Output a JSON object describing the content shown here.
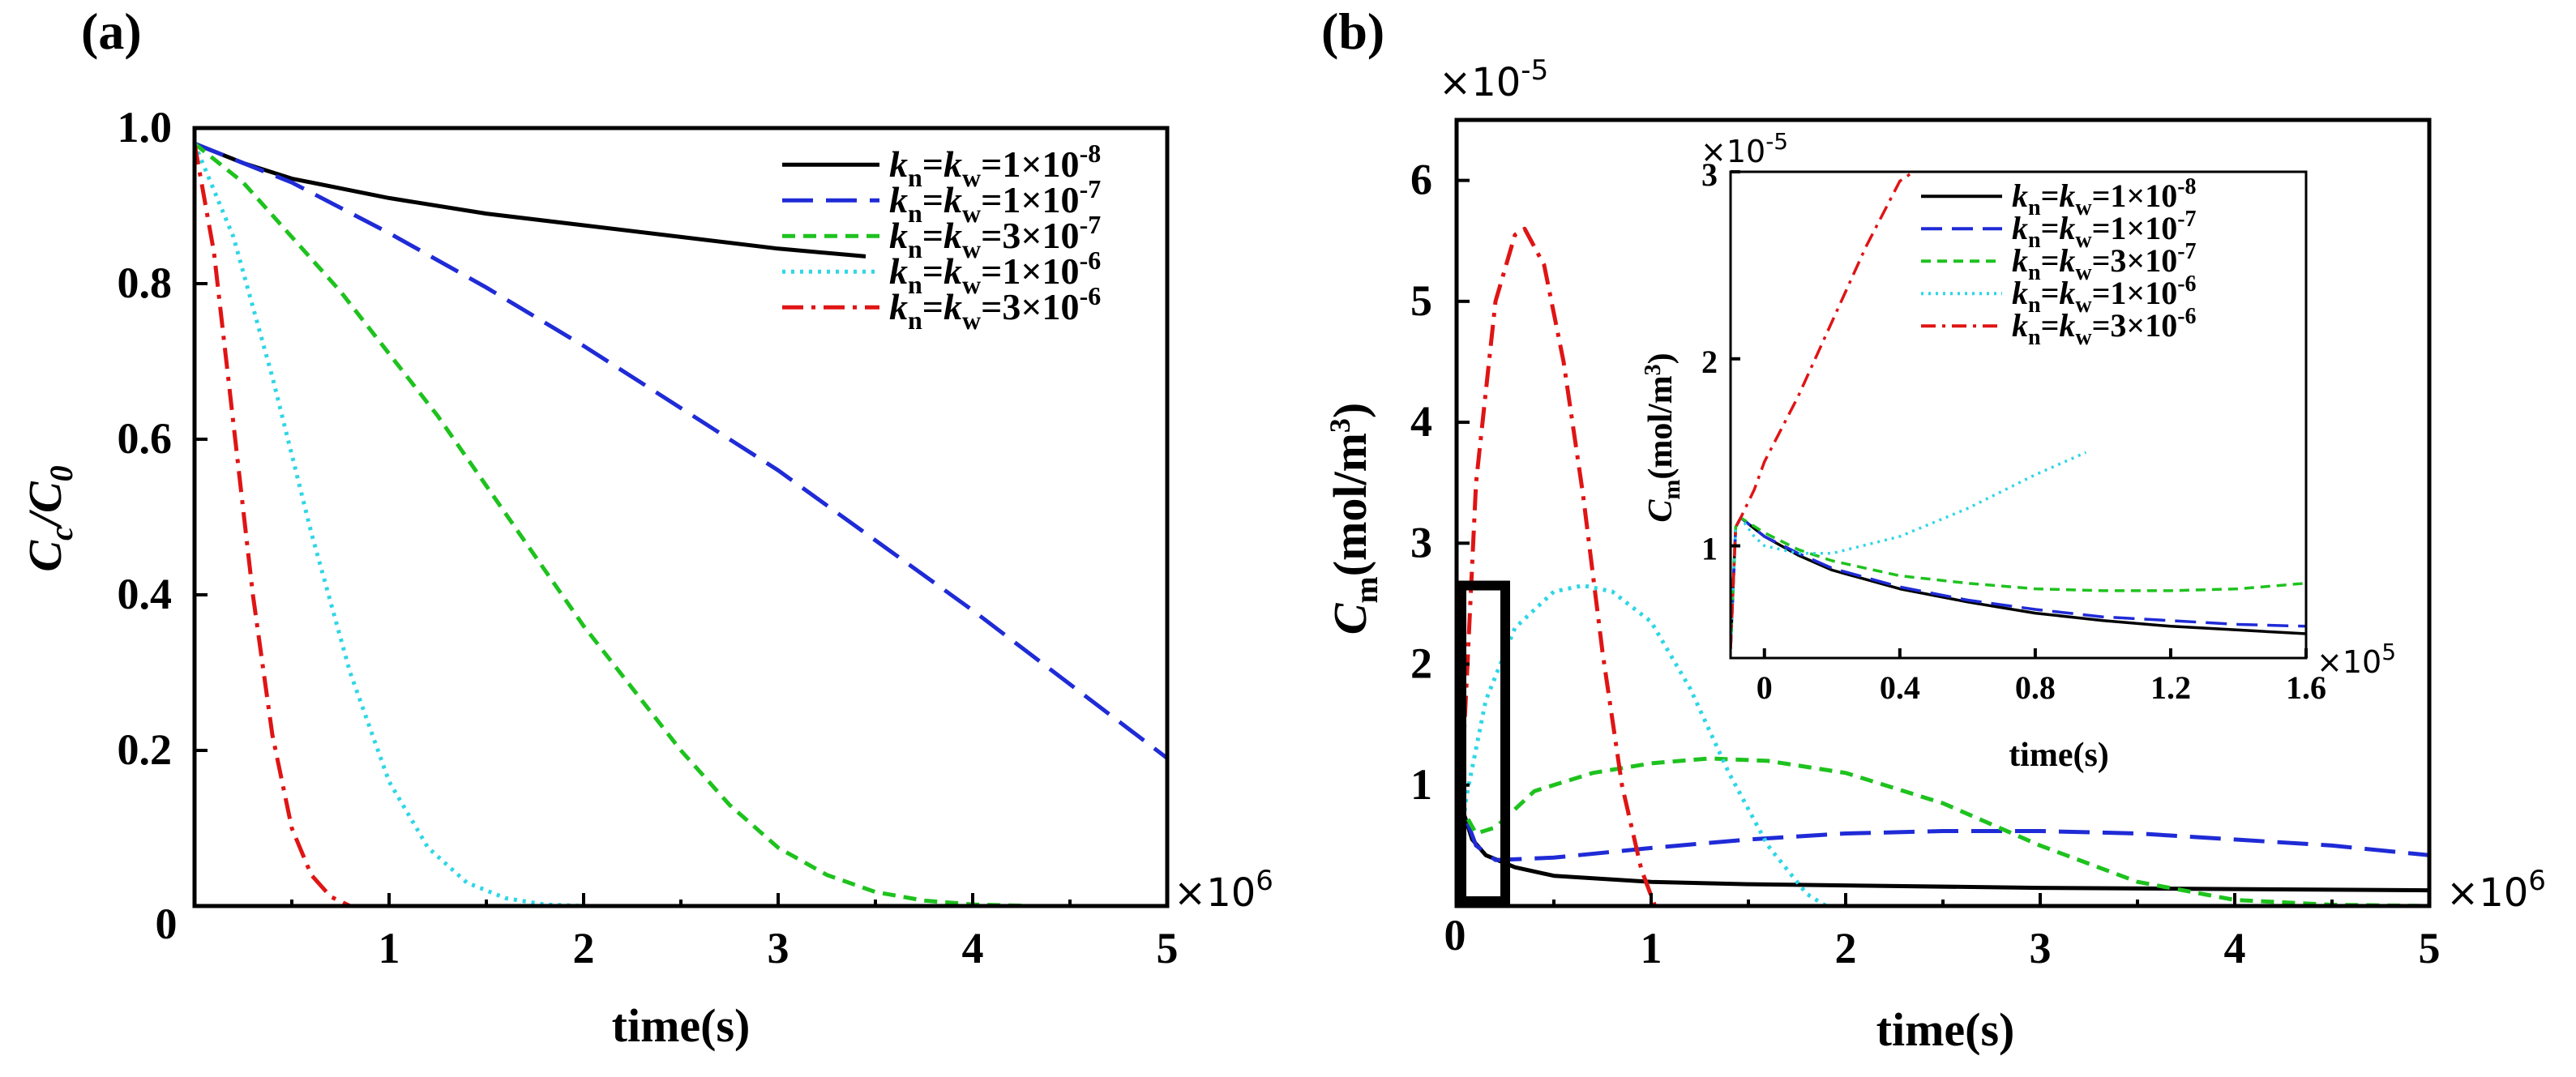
{
  "colors": {
    "s1": "#000000",
    "s2": "#1f2bd6",
    "s3": "#1ec21e",
    "s4": "#2fd6e6",
    "s5": "#e01414"
  },
  "legend": [
    {
      "sub_n": "n",
      "sub_w": "w",
      "base": "=1×10",
      "exp": "-8",
      "color": "s1",
      "dash": "solid"
    },
    {
      "sub_n": "n",
      "sub_w": "w",
      "base": "=1×10",
      "exp": "-7",
      "color": "s2",
      "dash": "long"
    },
    {
      "sub_n": "n",
      "sub_w": "w",
      "base": "=3×10",
      "exp": "-7",
      "color": "s3",
      "dash": "short"
    },
    {
      "sub_n": "n",
      "sub_w": "w",
      "base": "=1×10",
      "exp": "-6",
      "color": "s4",
      "dash": "dot"
    },
    {
      "sub_n": "n",
      "sub_w": "w",
      "base": "=3×10",
      "exp": "-6",
      "color": "s5",
      "dash": "dashdot"
    }
  ],
  "legend_k": "k",
  "chart_data": [
    {
      "id": "a",
      "type": "line",
      "panel_label": "(a)",
      "xlabel": "time(s)",
      "ylabel_main": "C",
      "ylabel_sub1": "c",
      "ylabel_sep": "/C",
      "ylabel_sub2": "0",
      "x_multiplier_base": "×10",
      "x_multiplier_exp": "6",
      "xlim": [
        0,
        5
      ],
      "ylim": [
        0,
        1
      ],
      "xticks": [
        1,
        2,
        3,
        4,
        5
      ],
      "xtick_labels": [
        "1",
        "2",
        "3",
        "4",
        "5"
      ],
      "origin_label": "0",
      "yticks": [
        0.2,
        0.4,
        0.6,
        0.8,
        1.0
      ],
      "ytick_labels": [
        "0.2",
        "0.4",
        "0.6",
        "0.8",
        "1.0"
      ],
      "series": [
        {
          "name": "kn=kw=1×10^-8",
          "color": "s1",
          "dash": "solid",
          "x": [
            0,
            0.25,
            0.5,
            1.0,
            1.5,
            2.0,
            2.5,
            3.0,
            3.45
          ],
          "y": [
            0.98,
            0.955,
            0.935,
            0.91,
            0.89,
            0.875,
            0.86,
            0.845,
            0.835
          ]
        },
        {
          "name": "kn=kw=1×10^-7",
          "color": "s2",
          "dash": "long",
          "x": [
            0,
            0.5,
            1.0,
            1.5,
            2.0,
            2.5,
            3.0,
            3.5,
            4.0,
            4.5,
            5.0
          ],
          "y": [
            0.98,
            0.93,
            0.865,
            0.795,
            0.72,
            0.64,
            0.56,
            0.47,
            0.38,
            0.285,
            0.19
          ]
        },
        {
          "name": "kn=kw=3×10^-7",
          "color": "s3",
          "dash": "short",
          "x": [
            0,
            0.25,
            0.5,
            0.75,
            1.0,
            1.25,
            1.5,
            1.75,
            2.0,
            2.25,
            2.5,
            2.75,
            3.0,
            3.25,
            3.5,
            3.75,
            4.0,
            4.3,
            5.0
          ],
          "y": [
            0.98,
            0.93,
            0.86,
            0.79,
            0.71,
            0.63,
            0.54,
            0.45,
            0.36,
            0.28,
            0.2,
            0.13,
            0.075,
            0.04,
            0.018,
            0.007,
            0.002,
            0.0,
            0.0
          ]
        },
        {
          "name": "kn=kw=1×10^-6",
          "color": "s4",
          "dash": "dot",
          "x": [
            0,
            0.2,
            0.4,
            0.6,
            0.8,
            1.0,
            1.2,
            1.4,
            1.6,
            1.8,
            2.0,
            5.0
          ],
          "y": [
            0.98,
            0.86,
            0.68,
            0.48,
            0.3,
            0.16,
            0.075,
            0.03,
            0.01,
            0.002,
            0.0,
            0.0
          ]
        },
        {
          "name": "kn=kw=3×10^-6",
          "color": "s5",
          "dash": "dashdot",
          "x": [
            0,
            0.1,
            0.2,
            0.3,
            0.4,
            0.5,
            0.6,
            0.7,
            0.8,
            0.9,
            5.0
          ],
          "y": [
            0.98,
            0.84,
            0.62,
            0.4,
            0.22,
            0.1,
            0.04,
            0.012,
            0.0,
            0.0,
            0.0
          ]
        }
      ]
    },
    {
      "id": "b",
      "type": "line",
      "panel_label": "(b)",
      "xlabel": "time(s)",
      "ylabel_main": "C",
      "ylabel_sub1": "m",
      "ylabel_rest": "(mol/m",
      "ylabel_exp": "3",
      "ylabel_close": ")",
      "y_multiplier_base": "×10",
      "y_multiplier_exp": "-5",
      "x_multiplier_base": "×10",
      "x_multiplier_exp": "6",
      "xlim": [
        0,
        5
      ],
      "ylim": [
        0,
        6.5
      ],
      "xticks": [
        1,
        2,
        3,
        4,
        5
      ],
      "xtick_labels": [
        "1",
        "2",
        "3",
        "4",
        "5"
      ],
      "origin_label": "0",
      "yticks": [
        1,
        2,
        3,
        4,
        5,
        6
      ],
      "ytick_labels": [
        "1",
        "2",
        "3",
        "4",
        "5",
        "6"
      ],
      "zoom_box": {
        "x": [
          0,
          0.25
        ],
        "y": [
          0,
          2.65
        ]
      },
      "series": [
        {
          "name": "kn=kw=1×10^-8",
          "color": "s1",
          "dash": "solid",
          "x": [
            0,
            0.03,
            0.08,
            0.15,
            0.3,
            0.5,
            1.0,
            1.5,
            2.0,
            3.0,
            4.0,
            5.0
          ],
          "y": [
            0.2,
            0.8,
            0.55,
            0.42,
            0.32,
            0.25,
            0.2,
            0.18,
            0.17,
            0.15,
            0.14,
            0.13
          ]
        },
        {
          "name": "kn=kw=1×10^-7",
          "color": "s2",
          "dash": "long",
          "x": [
            0,
            0.03,
            0.1,
            0.2,
            0.5,
            1.0,
            1.5,
            2.0,
            2.5,
            3.0,
            3.5,
            4.0,
            4.5,
            5.0
          ],
          "y": [
            0.2,
            0.8,
            0.5,
            0.38,
            0.4,
            0.48,
            0.55,
            0.6,
            0.62,
            0.62,
            0.6,
            0.55,
            0.5,
            0.42
          ]
        },
        {
          "name": "kn=kw=3×10^-7",
          "color": "s3",
          "dash": "short",
          "x": [
            0,
            0.03,
            0.1,
            0.2,
            0.4,
            0.7,
            1.0,
            1.3,
            1.6,
            2.0,
            2.5,
            3.0,
            3.5,
            4.0,
            4.5,
            5.0
          ],
          "y": [
            0.2,
            0.8,
            0.6,
            0.65,
            0.95,
            1.1,
            1.18,
            1.22,
            1.2,
            1.1,
            0.85,
            0.5,
            0.2,
            0.05,
            0.01,
            0.0
          ]
        },
        {
          "name": "kn=kw=1×10^-6",
          "color": "s4",
          "dash": "dot",
          "x": [
            0,
            0.05,
            0.15,
            0.3,
            0.5,
            0.65,
            0.8,
            1.0,
            1.2,
            1.4,
            1.6,
            1.8,
            1.9,
            5.0
          ],
          "y": [
            0.2,
            0.9,
            1.7,
            2.3,
            2.6,
            2.65,
            2.6,
            2.35,
            1.8,
            1.1,
            0.5,
            0.1,
            0.0,
            0.0
          ]
        },
        {
          "name": "kn=kw=3×10^-6",
          "color": "s5",
          "dash": "dashdot",
          "x": [
            0,
            0.05,
            0.1,
            0.2,
            0.3,
            0.35,
            0.45,
            0.55,
            0.65,
            0.75,
            0.85,
            0.95,
            1.02,
            5.0
          ],
          "y": [
            0.2,
            1.8,
            3.5,
            5.0,
            5.55,
            5.6,
            5.3,
            4.5,
            3.4,
            2.1,
            1.0,
            0.3,
            0.0,
            0.0
          ]
        }
      ],
      "inset": {
        "ylabel_main": "C",
        "ylabel_sub1": "m",
        "ylabel_rest": "(mol/m",
        "ylabel_exp": "3",
        "ylabel_close": ")",
        "xlabel": "time(s)",
        "y_multiplier_base": "×10",
        "y_multiplier_exp": "-5",
        "x_multiplier_base": "×10",
        "x_multiplier_exp": "5",
        "xlim": [
          -0.1,
          1.6
        ],
        "ylim": [
          0.4,
          3.0
        ],
        "xticks": [
          0,
          0.4,
          0.8,
          1.2,
          1.6
        ],
        "xtick_labels": [
          "0",
          "0.4",
          "0.8",
          "1.2",
          "1.6"
        ],
        "yticks": [
          1,
          2,
          3
        ],
        "ytick_labels": [
          "1",
          "2",
          "3"
        ],
        "series": [
          {
            "name": "kn=kw=1×10^-8",
            "color": "s1",
            "dash": "solid",
            "x": [
              -0.1,
              -0.085,
              -0.07,
              0.0,
              0.1,
              0.2,
              0.4,
              0.6,
              0.8,
              1.0,
              1.2,
              1.4,
              1.6
            ],
            "y": [
              0.45,
              1.1,
              1.15,
              1.05,
              0.95,
              0.87,
              0.77,
              0.7,
              0.64,
              0.6,
              0.57,
              0.55,
              0.53
            ]
          },
          {
            "name": "kn=kw=1×10^-7",
            "color": "s2",
            "dash": "long",
            "x": [
              -0.1,
              -0.085,
              -0.07,
              0.0,
              0.1,
              0.2,
              0.4,
              0.6,
              0.8,
              1.0,
              1.2,
              1.4,
              1.6
            ],
            "y": [
              0.45,
              1.1,
              1.15,
              1.05,
              0.96,
              0.88,
              0.78,
              0.71,
              0.66,
              0.62,
              0.6,
              0.58,
              0.57
            ]
          },
          {
            "name": "kn=kw=3×10^-7",
            "color": "s3",
            "dash": "short",
            "x": [
              -0.1,
              -0.085,
              -0.07,
              0.0,
              0.1,
              0.2,
              0.4,
              0.6,
              0.8,
              1.0,
              1.2,
              1.4,
              1.6
            ],
            "y": [
              0.45,
              1.1,
              1.15,
              1.07,
              0.98,
              0.92,
              0.84,
              0.8,
              0.77,
              0.76,
              0.76,
              0.77,
              0.8
            ]
          },
          {
            "name": "kn=kw=1×10^-6",
            "color": "s4",
            "dash": "dot",
            "x": [
              -0.1,
              -0.085,
              -0.07,
              -0.03,
              0.0,
              0.1,
              0.2,
              0.4,
              0.6,
              0.8,
              0.95
            ],
            "y": [
              0.45,
              1.1,
              1.15,
              1.05,
              1.0,
              0.96,
              0.96,
              1.05,
              1.2,
              1.38,
              1.5
            ]
          },
          {
            "name": "kn=kw=3×10^-6",
            "color": "s5",
            "dash": "dashdot",
            "x": [
              -0.1,
              -0.085,
              -0.07,
              -0.03,
              0.0,
              0.1,
              0.2,
              0.3,
              0.4,
              0.44
            ],
            "y": [
              0.45,
              1.1,
              1.15,
              1.3,
              1.45,
              1.8,
              2.2,
              2.6,
              2.95,
              3.0
            ]
          }
        ]
      }
    }
  ]
}
